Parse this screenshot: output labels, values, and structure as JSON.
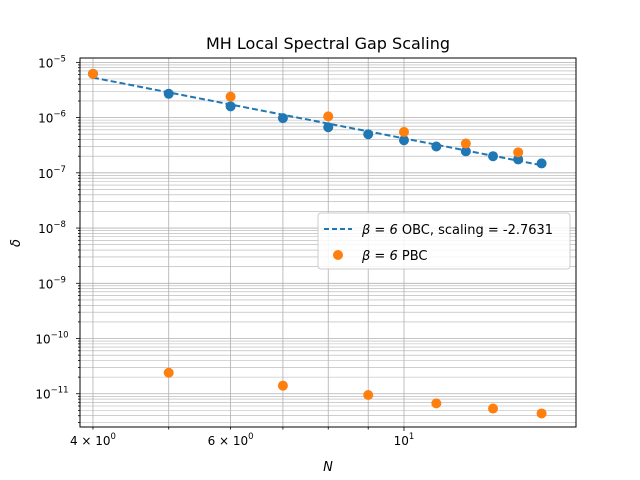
{
  "chart_data": {
    "type": "scatter",
    "title": "MH Local Spectral Gap Scaling",
    "xlabel": "N",
    "ylabel": "δ",
    "xscale": "log",
    "yscale": "log",
    "xlim": [
      3.85,
      16.6
    ],
    "ylim": [
      2.5e-12,
      1.2e-05
    ],
    "grid": "on (major and minor)",
    "legend_position": "center-right",
    "x_ticks": [
      {
        "value": 4,
        "label": "4 × 10",
        "exp": "0"
      },
      {
        "value": 6,
        "label": "6 × 10",
        "exp": "0"
      },
      {
        "value": 10,
        "label": "10",
        "exp": "1"
      }
    ],
    "y_ticks": [
      {
        "value": 1e-11,
        "label": "10",
        "exp": "−11"
      },
      {
        "value": 1e-10,
        "label": "10",
        "exp": "−10"
      },
      {
        "value": 1e-09,
        "label": "10",
        "exp": "−9"
      },
      {
        "value": 1e-08,
        "label": "10",
        "exp": "−8"
      },
      {
        "value": 1e-07,
        "label": "10",
        "exp": "−7"
      },
      {
        "value": 1e-06,
        "label": "10",
        "exp": "−6"
      },
      {
        "value": 1e-05,
        "label": "10",
        "exp": "−5"
      }
    ],
    "series": [
      {
        "name": "β = 6 OBC, scaling = -2.7631",
        "legend_math": "β = 6",
        "legend_rest": " OBC, scaling = -2.7631",
        "kind": "scatter+fit",
        "color": "#1f77b4",
        "x": [
          4,
          5,
          6,
          7,
          8,
          9,
          10,
          11,
          12,
          13,
          14,
          15
        ],
        "y": [
          6.2e-06,
          2.7e-06,
          1.6e-06,
          9.8e-07,
          6.7e-07,
          5e-07,
          3.9e-07,
          3e-07,
          2.45e-07,
          2e-07,
          1.75e-07,
          1.48e-07
        ],
        "fit": {
          "x": [
            4,
            15
          ],
          "y": [
            5.3e-06,
            1.37e-07
          ]
        }
      },
      {
        "name": "β = 6 PBC",
        "legend_math": "β = 6",
        "legend_rest": " PBC",
        "kind": "scatter",
        "color": "#ff7f0e",
        "x": [
          4,
          5,
          6,
          7,
          8,
          9,
          10,
          11,
          12,
          13,
          14,
          15
        ],
        "y": [
          6.2e-06,
          2.4e-11,
          2.4e-06,
          1.4e-11,
          1.05e-06,
          9.5e-12,
          5.5e-07,
          6.7e-12,
          3.4e-07,
          5.4e-12,
          2.35e-07,
          4.4e-12
        ]
      }
    ]
  }
}
